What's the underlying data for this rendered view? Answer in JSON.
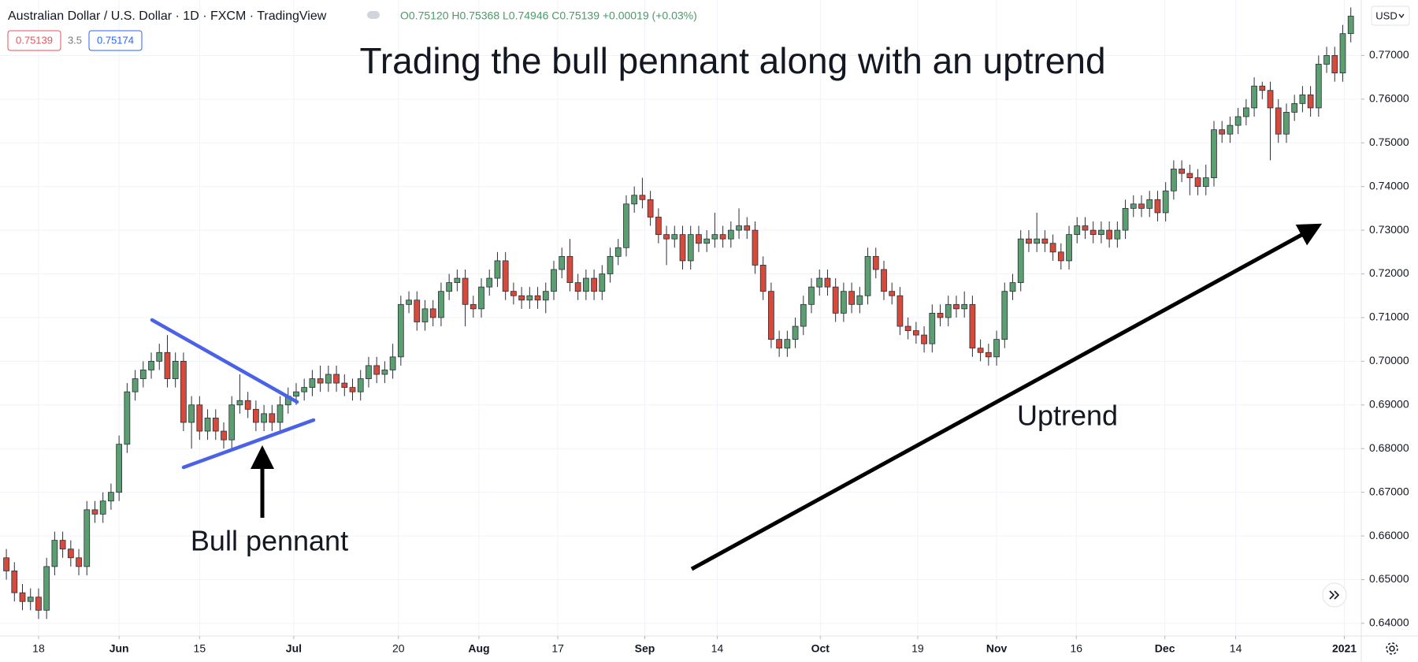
{
  "chart_data": {
    "type": "candlestick",
    "title": "Trading the bull pennant along with an uptrend",
    "header": {
      "symbol": "Australian Dollar / U.S. Dollar · 1D · FXCM · TradingView",
      "ohlc": "O0.75120 H0.75368 L0.74946 C0.75139 +0.00019 (+0.03%)",
      "bid": "0.75139",
      "spread": "3.5",
      "ask": "0.75174",
      "currency": "USD"
    },
    "annotations": {
      "pennant": "Bull pennant",
      "trend": "Uptrend"
    },
    "up_color": "#5b9f71",
    "down_color": "#d64a3c",
    "grid": true,
    "xlim": [
      -0.79,
      168.3
    ],
    "ylim": [
      0.6371,
      0.7827
    ],
    "xticks": [
      {
        "value": 4,
        "label": "18"
      },
      {
        "value": 14,
        "label": "Jun"
      },
      {
        "value": 24,
        "label": "15"
      },
      {
        "value": 35.7,
        "label": "Jul"
      },
      {
        "value": 48.7,
        "label": "20"
      },
      {
        "value": 58.7,
        "label": "Aug"
      },
      {
        "value": 68.5,
        "label": "17"
      },
      {
        "value": 79.3,
        "label": "Sep"
      },
      {
        "value": 88.3,
        "label": "14"
      },
      {
        "value": 101.1,
        "label": "Oct"
      },
      {
        "value": 113.2,
        "label": "19"
      },
      {
        "value": 123,
        "label": "Nov"
      },
      {
        "value": 132.9,
        "label": "16"
      },
      {
        "value": 143.9,
        "label": "Dec"
      },
      {
        "value": 152.7,
        "label": "14"
      },
      {
        "value": 166.2,
        "label": "2021"
      }
    ],
    "yticks": [
      {
        "value": 0.64,
        "label": "0.64000"
      },
      {
        "value": 0.65,
        "label": "0.65000"
      },
      {
        "value": 0.66,
        "label": "0.66000"
      },
      {
        "value": 0.67,
        "label": "0.67000"
      },
      {
        "value": 0.68,
        "label": "0.68000"
      },
      {
        "value": 0.69,
        "label": "0.69000"
      },
      {
        "value": 0.7,
        "label": "0.70000"
      },
      {
        "value": 0.71,
        "label": "0.71000"
      },
      {
        "value": 0.72,
        "label": "0.72000"
      },
      {
        "value": 0.73,
        "label": "0.73000"
      },
      {
        "value": 0.74,
        "label": "0.74000"
      },
      {
        "value": 0.75,
        "label": "0.75000"
      },
      {
        "value": 0.76,
        "label": "0.76000"
      },
      {
        "value": 0.77,
        "label": "0.77000"
      }
    ],
    "candles": [
      [
        0.655,
        0.657,
        0.65,
        0.652
      ],
      [
        0.652,
        0.654,
        0.645,
        0.647
      ],
      [
        0.647,
        0.649,
        0.643,
        0.645
      ],
      [
        0.645,
        0.648,
        0.643,
        0.646
      ],
      [
        0.646,
        0.648,
        0.641,
        0.643
      ],
      [
        0.643,
        0.655,
        0.641,
        0.653
      ],
      [
        0.653,
        0.661,
        0.651,
        0.659
      ],
      [
        0.659,
        0.661,
        0.655,
        0.657
      ],
      [
        0.657,
        0.659,
        0.653,
        0.655
      ],
      [
        0.655,
        0.657,
        0.651,
        0.653
      ],
      [
        0.653,
        0.668,
        0.651,
        0.666
      ],
      [
        0.666,
        0.668,
        0.663,
        0.665
      ],
      [
        0.665,
        0.67,
        0.663,
        0.668
      ],
      [
        0.668,
        0.672,
        0.666,
        0.67
      ],
      [
        0.67,
        0.683,
        0.668,
        0.681
      ],
      [
        0.681,
        0.695,
        0.679,
        0.693
      ],
      [
        0.693,
        0.698,
        0.691,
        0.696
      ],
      [
        0.696,
        0.7,
        0.694,
        0.698
      ],
      [
        0.698,
        0.702,
        0.696,
        0.7
      ],
      [
        0.7,
        0.704,
        0.698,
        0.702
      ],
      [
        0.702,
        0.706,
        0.694,
        0.696
      ],
      [
        0.696,
        0.702,
        0.694,
        0.7
      ],
      [
        0.7,
        0.702,
        0.684,
        0.686
      ],
      [
        0.686,
        0.692,
        0.68,
        0.69
      ],
      [
        0.69,
        0.692,
        0.682,
        0.684
      ],
      [
        0.684,
        0.689,
        0.682,
        0.687
      ],
      [
        0.687,
        0.689,
        0.682,
        0.684
      ],
      [
        0.684,
        0.686,
        0.68,
        0.682
      ],
      [
        0.682,
        0.692,
        0.68,
        0.69
      ],
      [
        0.69,
        0.697,
        0.688,
        0.691
      ],
      [
        0.691,
        0.693,
        0.687,
        0.689
      ],
      [
        0.689,
        0.691,
        0.684,
        0.686
      ],
      [
        0.686,
        0.69,
        0.684,
        0.688
      ],
      [
        0.688,
        0.69,
        0.684,
        0.686
      ],
      [
        0.686,
        0.692,
        0.684,
        0.69
      ],
      [
        0.69,
        0.694,
        0.688,
        0.692
      ],
      [
        0.692,
        0.695,
        0.69,
        0.693
      ],
      [
        0.693,
        0.696,
        0.691,
        0.694
      ],
      [
        0.694,
        0.698,
        0.692,
        0.696
      ],
      [
        0.696,
        0.699,
        0.693,
        0.695
      ],
      [
        0.695,
        0.699,
        0.693,
        0.697
      ],
      [
        0.697,
        0.699,
        0.693,
        0.695
      ],
      [
        0.695,
        0.697,
        0.692,
        0.694
      ],
      [
        0.694,
        0.696,
        0.691,
        0.693
      ],
      [
        0.693,
        0.698,
        0.691,
        0.696
      ],
      [
        0.696,
        0.701,
        0.694,
        0.699
      ],
      [
        0.699,
        0.701,
        0.695,
        0.697
      ],
      [
        0.697,
        0.7,
        0.695,
        0.698
      ],
      [
        0.698,
        0.704,
        0.696,
        0.701
      ],
      [
        0.701,
        0.715,
        0.699,
        0.713
      ],
      [
        0.713,
        0.716,
        0.711,
        0.714
      ],
      [
        0.714,
        0.716,
        0.707,
        0.709
      ],
      [
        0.709,
        0.714,
        0.707,
        0.712
      ],
      [
        0.712,
        0.714,
        0.708,
        0.71
      ],
      [
        0.71,
        0.718,
        0.708,
        0.716
      ],
      [
        0.716,
        0.72,
        0.714,
        0.718
      ],
      [
        0.718,
        0.721,
        0.716,
        0.719
      ],
      [
        0.719,
        0.721,
        0.708,
        0.713
      ],
      [
        0.713,
        0.715,
        0.71,
        0.712
      ],
      [
        0.712,
        0.719,
        0.71,
        0.717
      ],
      [
        0.717,
        0.721,
        0.715,
        0.719
      ],
      [
        0.719,
        0.725,
        0.717,
        0.723
      ],
      [
        0.723,
        0.725,
        0.714,
        0.716
      ],
      [
        0.716,
        0.718,
        0.713,
        0.715
      ],
      [
        0.715,
        0.717,
        0.712,
        0.714
      ],
      [
        0.714,
        0.717,
        0.712,
        0.715
      ],
      [
        0.715,
        0.717,
        0.712,
        0.714
      ],
      [
        0.714,
        0.718,
        0.711,
        0.716
      ],
      [
        0.716,
        0.723,
        0.714,
        0.721
      ],
      [
        0.721,
        0.726,
        0.719,
        0.724
      ],
      [
        0.724,
        0.728,
        0.716,
        0.718
      ],
      [
        0.718,
        0.72,
        0.714,
        0.716
      ],
      [
        0.716,
        0.721,
        0.714,
        0.719
      ],
      [
        0.719,
        0.721,
        0.714,
        0.716
      ],
      [
        0.716,
        0.722,
        0.714,
        0.72
      ],
      [
        0.72,
        0.726,
        0.718,
        0.724
      ],
      [
        0.724,
        0.728,
        0.722,
        0.726
      ],
      [
        0.726,
        0.738,
        0.724,
        0.736
      ],
      [
        0.736,
        0.74,
        0.734,
        0.738
      ],
      [
        0.738,
        0.742,
        0.735,
        0.737
      ],
      [
        0.737,
        0.739,
        0.731,
        0.733
      ],
      [
        0.733,
        0.735,
        0.727,
        0.729
      ],
      [
        0.729,
        0.731,
        0.722,
        0.728
      ],
      [
        0.728,
        0.731,
        0.726,
        0.729
      ],
      [
        0.729,
        0.731,
        0.721,
        0.723
      ],
      [
        0.723,
        0.731,
        0.721,
        0.729
      ],
      [
        0.729,
        0.731,
        0.725,
        0.727
      ],
      [
        0.727,
        0.73,
        0.725,
        0.728
      ],
      [
        0.728,
        0.734,
        0.726,
        0.729
      ],
      [
        0.729,
        0.731,
        0.726,
        0.728
      ],
      [
        0.728,
        0.732,
        0.726,
        0.73
      ],
      [
        0.73,
        0.735,
        0.728,
        0.731
      ],
      [
        0.731,
        0.733,
        0.728,
        0.73
      ],
      [
        0.73,
        0.732,
        0.72,
        0.722
      ],
      [
        0.722,
        0.724,
        0.714,
        0.716
      ],
      [
        0.716,
        0.718,
        0.703,
        0.705
      ],
      [
        0.705,
        0.707,
        0.701,
        0.703
      ],
      [
        0.703,
        0.707,
        0.701,
        0.705
      ],
      [
        0.705,
        0.71,
        0.703,
        0.708
      ],
      [
        0.708,
        0.715,
        0.706,
        0.713
      ],
      [
        0.713,
        0.719,
        0.711,
        0.717
      ],
      [
        0.717,
        0.721,
        0.715,
        0.719
      ],
      [
        0.719,
        0.721,
        0.715,
        0.717
      ],
      [
        0.717,
        0.719,
        0.709,
        0.711
      ],
      [
        0.711,
        0.718,
        0.709,
        0.716
      ],
      [
        0.716,
        0.718,
        0.711,
        0.713
      ],
      [
        0.713,
        0.717,
        0.711,
        0.715
      ],
      [
        0.715,
        0.726,
        0.713,
        0.724
      ],
      [
        0.724,
        0.726,
        0.719,
        0.721
      ],
      [
        0.721,
        0.723,
        0.714,
        0.716
      ],
      [
        0.716,
        0.718,
        0.713,
        0.715
      ],
      [
        0.715,
        0.717,
        0.706,
        0.708
      ],
      [
        0.708,
        0.71,
        0.705,
        0.707
      ],
      [
        0.707,
        0.709,
        0.704,
        0.706
      ],
      [
        0.706,
        0.708,
        0.702,
        0.704
      ],
      [
        0.704,
        0.713,
        0.702,
        0.711
      ],
      [
        0.711,
        0.713,
        0.708,
        0.71
      ],
      [
        0.71,
        0.715,
        0.708,
        0.713
      ],
      [
        0.713,
        0.715,
        0.71,
        0.712
      ],
      [
        0.712,
        0.716,
        0.71,
        0.713
      ],
      [
        0.713,
        0.715,
        0.701,
        0.703
      ],
      [
        0.703,
        0.705,
        0.7,
        0.702
      ],
      [
        0.702,
        0.704,
        0.699,
        0.701
      ],
      [
        0.701,
        0.707,
        0.699,
        0.705
      ],
      [
        0.705,
        0.718,
        0.703,
        0.716
      ],
      [
        0.716,
        0.72,
        0.714,
        0.718
      ],
      [
        0.718,
        0.73,
        0.716,
        0.728
      ],
      [
        0.728,
        0.73,
        0.725,
        0.727
      ],
      [
        0.727,
        0.734,
        0.725,
        0.728
      ],
      [
        0.728,
        0.73,
        0.725,
        0.727
      ],
      [
        0.727,
        0.729,
        0.723,
        0.725
      ],
      [
        0.725,
        0.727,
        0.721,
        0.723
      ],
      [
        0.723,
        0.731,
        0.721,
        0.729
      ],
      [
        0.729,
        0.733,
        0.727,
        0.731
      ],
      [
        0.731,
        0.733,
        0.728,
        0.73
      ],
      [
        0.73,
        0.732,
        0.727,
        0.729
      ],
      [
        0.729,
        0.732,
        0.727,
        0.73
      ],
      [
        0.73,
        0.732,
        0.726,
        0.728
      ],
      [
        0.728,
        0.732,
        0.726,
        0.73
      ],
      [
        0.73,
        0.737,
        0.728,
        0.735
      ],
      [
        0.735,
        0.738,
        0.733,
        0.736
      ],
      [
        0.736,
        0.738,
        0.733,
        0.735
      ],
      [
        0.735,
        0.739,
        0.733,
        0.737
      ],
      [
        0.737,
        0.739,
        0.732,
        0.734
      ],
      [
        0.734,
        0.741,
        0.732,
        0.739
      ],
      [
        0.739,
        0.746,
        0.737,
        0.744
      ],
      [
        0.744,
        0.746,
        0.741,
        0.743
      ],
      [
        0.743,
        0.745,
        0.738,
        0.742
      ],
      [
        0.742,
        0.744,
        0.738,
        0.74
      ],
      [
        0.74,
        0.745,
        0.738,
        0.742
      ],
      [
        0.742,
        0.755,
        0.74,
        0.753
      ],
      [
        0.753,
        0.755,
        0.75,
        0.752
      ],
      [
        0.752,
        0.756,
        0.75,
        0.754
      ],
      [
        0.754,
        0.758,
        0.752,
        0.756
      ],
      [
        0.756,
        0.76,
        0.754,
        0.758
      ],
      [
        0.758,
        0.765,
        0.756,
        0.763
      ],
      [
        0.763,
        0.764,
        0.76,
        0.762
      ],
      [
        0.762,
        0.764,
        0.746,
        0.758
      ],
      [
        0.758,
        0.76,
        0.75,
        0.752
      ],
      [
        0.752,
        0.759,
        0.75,
        0.757
      ],
      [
        0.757,
        0.761,
        0.755,
        0.759
      ],
      [
        0.759,
        0.763,
        0.757,
        0.761
      ],
      [
        0.761,
        0.763,
        0.756,
        0.758
      ],
      [
        0.758,
        0.77,
        0.756,
        0.768
      ],
      [
        0.768,
        0.772,
        0.766,
        0.77
      ],
      [
        0.77,
        0.772,
        0.764,
        0.766
      ],
      [
        0.766,
        0.777,
        0.764,
        0.775
      ],
      [
        0.775,
        0.781,
        0.773,
        0.779
      ]
    ]
  }
}
